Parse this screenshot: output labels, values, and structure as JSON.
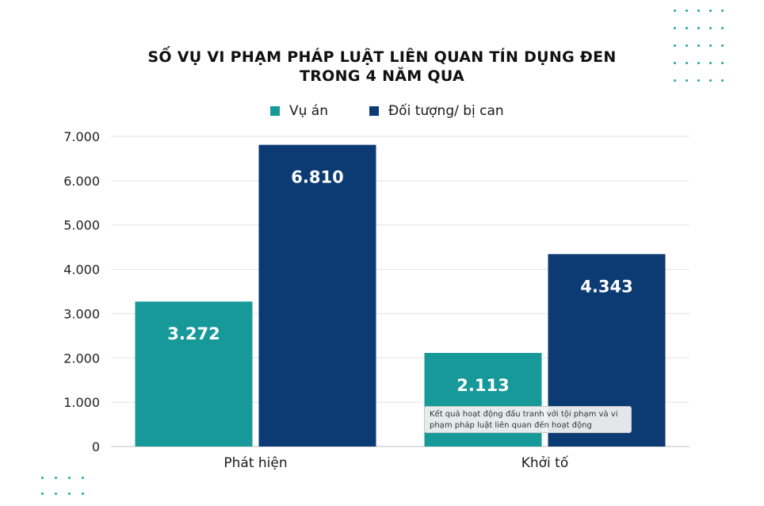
{
  "chart_data": {
    "type": "bar",
    "title_lines": [
      "SỐ VỤ VI PHẠM PHÁP LUẬT LIÊN QUAN TÍN DỤNG ĐEN",
      "TRONG 4 NĂM QUA"
    ],
    "categories": [
      "Phát hiện",
      "Khởi tố"
    ],
    "series": [
      {
        "name": "Vụ án",
        "values": [
          3272,
          2113
        ],
        "labels": [
          "3.272",
          "2.113"
        ],
        "color": "#17999a"
      },
      {
        "name": "Đối tượng/ bị can",
        "values": [
          6810,
          4343
        ],
        "labels": [
          "6.810",
          "4.343"
        ],
        "color": "#0c3b73"
      }
    ],
    "ylim": [
      0,
      7000
    ],
    "yticks": [
      0,
      1000,
      2000,
      3000,
      4000,
      5000,
      6000,
      7000
    ],
    "ytick_labels": [
      "0",
      "1.000",
      "2.000",
      "3.000",
      "4.000",
      "5.000",
      "6.000",
      "7.000"
    ],
    "grid": true,
    "legend": "top-center"
  },
  "tooltip": {
    "line1": "Kết quả hoạt động đấu tranh với tội phạm và vi",
    "line2": "phạm pháp luật liên quan đến hoạt động"
  },
  "colors": {
    "accent_teal": "#17999a",
    "accent_navy": "#0c3b73",
    "dot_color": "#1ea6a6"
  }
}
